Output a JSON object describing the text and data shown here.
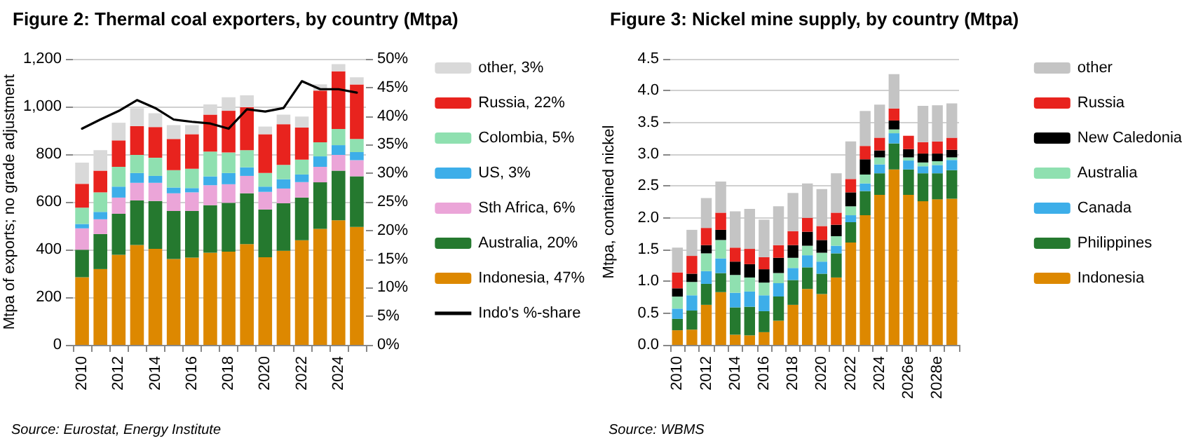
{
  "chart_data": [
    {
      "type": "bar",
      "title": "Figure 2: Thermal coal exporters, by country (Mtpa)",
      "ylabel": "Mtpa of exports; no grade adjustment",
      "annotations": [
        "Source: Eurostat, Energy Institute"
      ],
      "stacked": true,
      "grid": "y",
      "legend": "right",
      "categories": [
        "2010",
        null,
        "2012",
        null,
        "2014",
        null,
        "2016",
        null,
        "2018",
        null,
        "2020",
        null,
        "2022",
        null,
        "2024",
        null
      ],
      "ylim": [
        0,
        1200
      ],
      "yticks": [
        0,
        200,
        400,
        600,
        800,
        {
          "value": 1000,
          "label": "1,000"
        },
        {
          "value": 1200,
          "label": "1,200"
        }
      ],
      "y2lim": [
        0,
        50
      ],
      "y2ticks": [
        {
          "value": 0,
          "label": "0%"
        },
        {
          "value": 5,
          "label": "5%"
        },
        {
          "value": 10,
          "label": "10%"
        },
        {
          "value": 15,
          "label": "15%"
        },
        {
          "value": 20,
          "label": "20%"
        },
        {
          "value": 25,
          "label": "25%"
        },
        {
          "value": 30,
          "label": "30%"
        },
        {
          "value": 35,
          "label": "35%"
        },
        {
          "value": 40,
          "label": "40%"
        },
        {
          "value": 45,
          "label": "45%"
        },
        {
          "value": 50,
          "label": "50%"
        }
      ],
      "series": [
        {
          "name": "Indonesia, 47%",
          "color": "#dd8800",
          "values": [
            284,
            318,
            378,
            419,
            403,
            360,
            366,
            387,
            391,
            423,
            368,
            395,
            439,
            487,
            523,
            495
          ]
        },
        {
          "name": "Australia, 20%",
          "color": "#25792f",
          "values": [
            115,
            147,
            172,
            187,
            201,
            202,
            196,
            199,
            205,
            213,
            200,
            199,
            179,
            195,
            208,
            212
          ]
        },
        {
          "name": "Sth Africa, 6%",
          "color": "#eba5d8",
          "values": [
            90,
            62,
            68,
            74,
            76,
            74,
            78,
            84,
            78,
            73,
            74,
            62,
            65,
            65,
            66,
            68
          ]
        },
        {
          "name": "US, 3%",
          "color": "#3daee9",
          "values": [
            18,
            31,
            46,
            41,
            29,
            24,
            18,
            37,
            47,
            36,
            22,
            39,
            32,
            44,
            41,
            34
          ]
        },
        {
          "name": "Colombia, 5%",
          "color": "#8fe0b0",
          "values": [
            69,
            82,
            83,
            76,
            76,
            73,
            81,
            104,
            86,
            72,
            57,
            60,
            62,
            59,
            68,
            55
          ]
        },
        {
          "name": "Russia, 22%",
          "color": "#e8231e",
          "values": [
            100,
            91,
            111,
            121,
            129,
            131,
            145,
            155,
            175,
            180,
            163,
            171,
            135,
            217,
            242,
            229
          ]
        },
        {
          "name": "other, 3%",
          "color": "#d9d9d9",
          "values": [
            89,
            86,
            74,
            75,
            58,
            58,
            38,
            43,
            57,
            50,
            32,
            40,
            46,
            26,
            30,
            30
          ]
        },
        {
          "name": "Indo's %-share",
          "type": "line",
          "axis": "y2",
          "color": "#000000",
          "marker": "none",
          "values": [
            37.8,
            39.4,
            40.9,
            42.8,
            41.4,
            39.4,
            39.0,
            38.7,
            37.8,
            41.2,
            40.8,
            41.4,
            46.1,
            44.7,
            44.7,
            44.1
          ]
        }
      ]
    },
    {
      "type": "bar",
      "title": "Figure 3: Nickel mine supply, by country (Mtpa)",
      "ylabel": "Mtpa, contained nickel",
      "annotations": [
        "Source: WBMS"
      ],
      "stacked": true,
      "grid": "y",
      "legend": "right",
      "categories": [
        "2010",
        null,
        "2012",
        null,
        "2014",
        null,
        "2016",
        null,
        "2018",
        null,
        "2020",
        null,
        "2022",
        null,
        "2024",
        null,
        "2026e",
        null,
        "2028e",
        null
      ],
      "ylim": [
        0,
        4.5
      ],
      "yticks": [
        {
          "value": 0,
          "label": "0.0"
        },
        0.5,
        {
          "value": 1,
          "label": "1.0"
        },
        1.5,
        {
          "value": 2,
          "label": "2.0"
        },
        2.5,
        {
          "value": 3,
          "label": "3.0"
        },
        3.5,
        {
          "value": 4,
          "label": "4.0"
        },
        4.5
      ],
      "series": [
        {
          "name": "Indonesia",
          "color": "#dd8800",
          "values": [
            0.23,
            0.24,
            0.63,
            0.83,
            0.16,
            0.15,
            0.2,
            0.38,
            0.63,
            0.88,
            0.8,
            1.06,
            1.61,
            2.04,
            2.36,
            2.76,
            2.36,
            2.26,
            2.29,
            2.3
          ]
        },
        {
          "name": "Philippines",
          "color": "#25792f",
          "values": [
            0.18,
            0.3,
            0.33,
            0.3,
            0.43,
            0.45,
            0.33,
            0.38,
            0.39,
            0.34,
            0.32,
            0.38,
            0.32,
            0.38,
            0.34,
            0.41,
            0.4,
            0.44,
            0.41,
            0.45
          ]
        },
        {
          "name": "Canada",
          "color": "#3daee9",
          "values": [
            0.16,
            0.24,
            0.2,
            0.23,
            0.23,
            0.24,
            0.25,
            0.21,
            0.19,
            0.19,
            0.19,
            0.12,
            0.11,
            0.12,
            0.14,
            0.16,
            0.14,
            0.11,
            0.13,
            0.16
          ]
        },
        {
          "name": "Australia",
          "color": "#8fe0b0",
          "values": [
            0.19,
            0.21,
            0.28,
            0.29,
            0.28,
            0.22,
            0.2,
            0.16,
            0.16,
            0.15,
            0.14,
            0.15,
            0.14,
            0.14,
            0.11,
            0.06,
            0.05,
            0.06,
            0.06,
            0.04
          ]
        },
        {
          "name": "New Caledonia",
          "color": "#000000",
          "values": [
            0.13,
            0.13,
            0.13,
            0.16,
            0.21,
            0.21,
            0.21,
            0.24,
            0.2,
            0.22,
            0.2,
            0.18,
            0.22,
            0.24,
            0.11,
            0.14,
            0.13,
            0.14,
            0.12,
            0.12
          ]
        },
        {
          "name": "Russia",
          "color": "#e8231e",
          "values": [
            0.25,
            0.28,
            0.27,
            0.27,
            0.22,
            0.24,
            0.19,
            0.2,
            0.22,
            0.22,
            0.22,
            0.19,
            0.21,
            0.21,
            0.2,
            0.19,
            0.21,
            0.18,
            0.19,
            0.19
          ]
        },
        {
          "name": "other",
          "color": "#c4c4c4",
          "values": [
            0.39,
            0.41,
            0.47,
            0.49,
            0.57,
            0.63,
            0.59,
            0.61,
            0.6,
            0.54,
            0.58,
            0.62,
            0.59,
            0.55,
            0.52,
            0.54,
            0,
            0.57,
            0.57,
            0.54
          ]
        }
      ]
    }
  ]
}
